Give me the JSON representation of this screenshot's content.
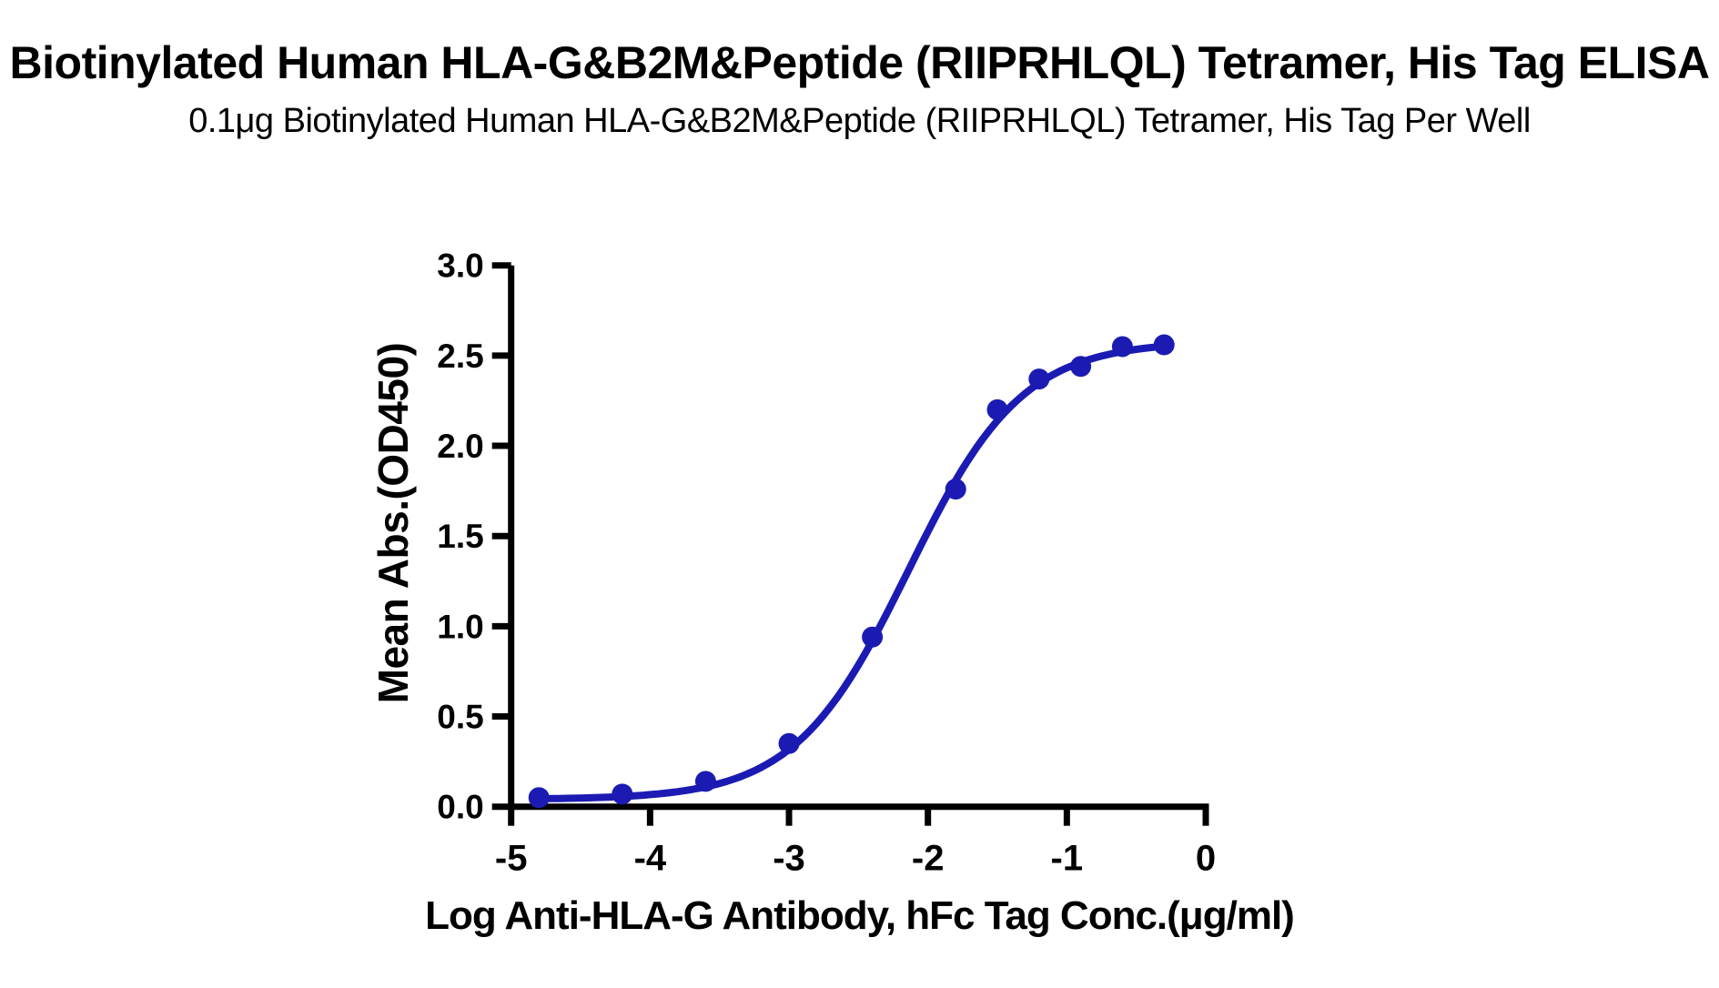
{
  "chart_data": {
    "type": "scatter",
    "title": "Biotinylated Human HLA-G&B2M&Peptide (RIIPRHLQL) Tetramer, His Tag ELISA",
    "subtitle": "0.1μg Biotinylated Human HLA-G&B2M&Peptide (RIIPRHLQL) Tetramer, His Tag Per Well",
    "xlabel": "Log Anti-HLA-G Antibody, hFc Tag Conc.(μg/ml)",
    "ylabel": "Mean Abs.(OD450)",
    "x": [
      -4.8,
      -4.2,
      -3.6,
      -3.0,
      -2.4,
      -1.8,
      -1.5,
      -1.2,
      -0.9,
      -0.6,
      -0.3
    ],
    "y": [
      0.05,
      0.07,
      0.14,
      0.35,
      0.94,
      1.76,
      2.2,
      2.37,
      2.44,
      2.55,
      2.56
    ],
    "x_ticks": [
      -5,
      -4,
      -3,
      -2,
      -1,
      0
    ],
    "y_ticks": [
      0.0,
      0.5,
      1.0,
      1.5,
      2.0,
      2.5,
      3.0
    ],
    "xlim": [
      -5,
      0
    ],
    "ylim": [
      0,
      3
    ],
    "grid": false,
    "legend": false,
    "series_name": "Anti-HLA-G Antibody, hFc Tag",
    "series_color": "#1b1bb3",
    "text_color": "#000000",
    "fit": {
      "model": "4PL",
      "bottom": 0.04,
      "top": 2.58,
      "log_ec50": -2.14,
      "hill": 1.06
    }
  }
}
